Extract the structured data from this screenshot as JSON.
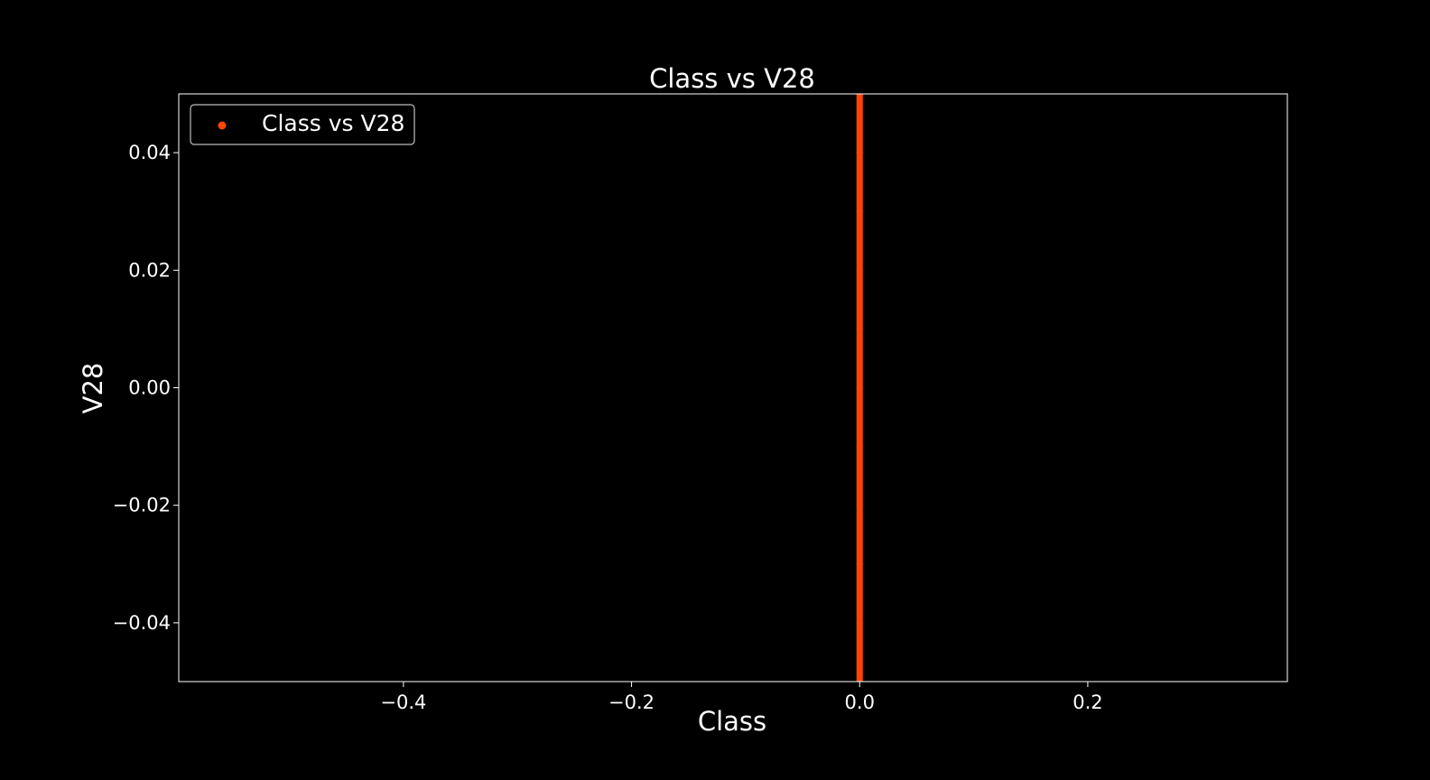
{
  "chart_data": {
    "type": "scatter",
    "title": "Class vs V28",
    "xlabel": "Class",
    "ylabel": "V28",
    "xlim": [
      -0.597,
      0.375
    ],
    "ylim": [
      -0.05,
      0.05
    ],
    "x_ticks": [
      -0.4,
      -0.2,
      0.0,
      0.2
    ],
    "x_tick_labels": [
      "−0.4",
      "−0.2",
      "0.0",
      "0.2"
    ],
    "y_ticks": [
      0.04,
      0.02,
      0.0,
      -0.02,
      -0.04
    ],
    "y_tick_labels": [
      "0.04",
      "0.02",
      "0.00",
      "−0.02",
      "−0.04"
    ],
    "grid": false,
    "legend_position": "top-left",
    "series": [
      {
        "name": "Class vs V28",
        "color": "#ff4500",
        "x": [
          0,
          0,
          0,
          0,
          0,
          0,
          0,
          0,
          0,
          0,
          0
        ],
        "y": [
          -0.05,
          -0.04,
          -0.03,
          -0.02,
          -0.01,
          0.0,
          0.01,
          0.02,
          0.03,
          0.04,
          0.05
        ]
      }
    ],
    "colors": {
      "background": "#000000",
      "foreground": "#ffffff",
      "marker": "#ff4500"
    }
  }
}
